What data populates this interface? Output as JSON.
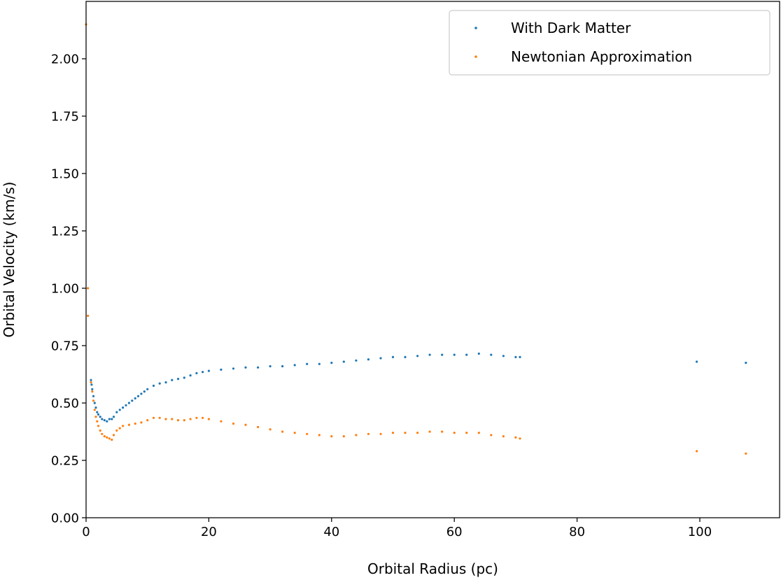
{
  "chart_data": {
    "type": "scatter",
    "title": "",
    "xlabel": "Orbital Radius (pc)",
    "ylabel": "Orbital Velocity (km/s)",
    "xlim": [
      0,
      113
    ],
    "ylim": [
      0,
      2.25
    ],
    "xticks": [
      0,
      20,
      40,
      60,
      80,
      100
    ],
    "xtick_labels": [
      "0",
      "20",
      "40",
      "60",
      "80",
      "100"
    ],
    "yticks": [
      0,
      0.25,
      0.5,
      0.75,
      1.0,
      1.25,
      1.5,
      1.75,
      2.0
    ],
    "ytick_labels": [
      "0.00",
      "0.25",
      "0.50",
      "0.75",
      "1.00",
      "1.25",
      "1.50",
      "1.75",
      "2.00"
    ],
    "grid": false,
    "legend_position": "top-right",
    "series": [
      {
        "name": "With Dark Matter",
        "color": "#1f77b4",
        "points": [
          [
            0.8,
            0.6
          ],
          [
            0.9,
            0.58
          ],
          [
            1.0,
            0.56
          ],
          [
            1.2,
            0.53
          ],
          [
            1.4,
            0.5
          ],
          [
            1.6,
            0.48
          ],
          [
            1.8,
            0.46
          ],
          [
            2.0,
            0.45
          ],
          [
            2.3,
            0.44
          ],
          [
            2.6,
            0.43
          ],
          [
            3.0,
            0.425
          ],
          [
            3.4,
            0.42
          ],
          [
            3.8,
            0.43
          ],
          [
            4.2,
            0.43
          ],
          [
            4.5,
            0.44
          ],
          [
            5.0,
            0.46
          ],
          [
            5.5,
            0.47
          ],
          [
            6.0,
            0.48
          ],
          [
            6.5,
            0.49
          ],
          [
            7.0,
            0.5
          ],
          [
            7.5,
            0.51
          ],
          [
            8.0,
            0.52
          ],
          [
            8.5,
            0.53
          ],
          [
            9.0,
            0.54
          ],
          [
            9.5,
            0.55
          ],
          [
            10.0,
            0.56
          ],
          [
            11.0,
            0.575
          ],
          [
            12.0,
            0.585
          ],
          [
            13.0,
            0.59
          ],
          [
            14.0,
            0.6
          ],
          [
            15.0,
            0.605
          ],
          [
            16.0,
            0.61
          ],
          [
            17.0,
            0.62
          ],
          [
            18.0,
            0.63
          ],
          [
            19.0,
            0.635
          ],
          [
            20.0,
            0.64
          ],
          [
            22.0,
            0.645
          ],
          [
            24.0,
            0.65
          ],
          [
            26.0,
            0.655
          ],
          [
            28.0,
            0.655
          ],
          [
            30.0,
            0.66
          ],
          [
            32.0,
            0.66
          ],
          [
            34.0,
            0.665
          ],
          [
            36.0,
            0.67
          ],
          [
            38.0,
            0.67
          ],
          [
            40.0,
            0.675
          ],
          [
            42.0,
            0.68
          ],
          [
            44.0,
            0.685
          ],
          [
            46.0,
            0.69
          ],
          [
            48.0,
            0.695
          ],
          [
            50.0,
            0.7
          ],
          [
            52.0,
            0.7
          ],
          [
            54.0,
            0.705
          ],
          [
            56.0,
            0.71
          ],
          [
            58.0,
            0.71
          ],
          [
            60.0,
            0.71
          ],
          [
            62.0,
            0.71
          ],
          [
            64.0,
            0.715
          ],
          [
            66.0,
            0.71
          ],
          [
            68.0,
            0.705
          ],
          [
            70.0,
            0.7
          ],
          [
            70.7,
            0.7
          ],
          [
            99.5,
            0.68
          ],
          [
            107.5,
            0.675
          ]
        ]
      },
      {
        "name": "Newtonian Approximation",
        "color": "#ff7f0e",
        "points": [
          [
            0.0,
            2.15
          ],
          [
            0.3,
            1.0
          ],
          [
            0.3,
            0.88
          ],
          [
            0.8,
            0.59
          ],
          [
            1.0,
            0.55
          ],
          [
            1.2,
            0.51
          ],
          [
            1.4,
            0.47
          ],
          [
            1.6,
            0.44
          ],
          [
            1.8,
            0.42
          ],
          [
            2.0,
            0.4
          ],
          [
            2.3,
            0.38
          ],
          [
            2.6,
            0.365
          ],
          [
            3.0,
            0.355
          ],
          [
            3.4,
            0.35
          ],
          [
            3.8,
            0.345
          ],
          [
            4.2,
            0.34
          ],
          [
            4.5,
            0.36
          ],
          [
            5.0,
            0.38
          ],
          [
            5.5,
            0.39
          ],
          [
            6.0,
            0.4
          ],
          [
            7.0,
            0.405
          ],
          [
            8.0,
            0.41
          ],
          [
            9.0,
            0.415
          ],
          [
            10.0,
            0.425
          ],
          [
            11.0,
            0.435
          ],
          [
            12.0,
            0.435
          ],
          [
            13.0,
            0.43
          ],
          [
            14.0,
            0.43
          ],
          [
            15.0,
            0.425
          ],
          [
            16.0,
            0.425
          ],
          [
            17.0,
            0.43
          ],
          [
            18.0,
            0.435
          ],
          [
            19.0,
            0.435
          ],
          [
            20.0,
            0.43
          ],
          [
            22.0,
            0.42
          ],
          [
            24.0,
            0.41
          ],
          [
            26.0,
            0.405
          ],
          [
            28.0,
            0.395
          ],
          [
            30.0,
            0.385
          ],
          [
            32.0,
            0.375
          ],
          [
            34.0,
            0.37
          ],
          [
            36.0,
            0.365
          ],
          [
            38.0,
            0.36
          ],
          [
            40.0,
            0.355
          ],
          [
            42.0,
            0.355
          ],
          [
            44.0,
            0.36
          ],
          [
            46.0,
            0.365
          ],
          [
            48.0,
            0.365
          ],
          [
            50.0,
            0.37
          ],
          [
            52.0,
            0.37
          ],
          [
            54.0,
            0.37
          ],
          [
            56.0,
            0.375
          ],
          [
            58.0,
            0.375
          ],
          [
            60.0,
            0.37
          ],
          [
            62.0,
            0.37
          ],
          [
            64.0,
            0.37
          ],
          [
            66.0,
            0.36
          ],
          [
            68.0,
            0.355
          ],
          [
            70.0,
            0.35
          ],
          [
            70.7,
            0.345
          ],
          [
            99.5,
            0.29
          ],
          [
            107.5,
            0.28
          ]
        ]
      }
    ]
  }
}
